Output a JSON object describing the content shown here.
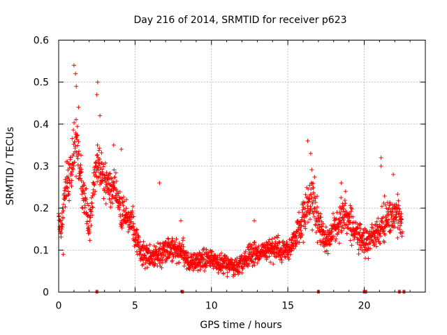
{
  "chart_data": {
    "type": "scatter",
    "title": "Day 216 of 2014, SRMTID for receiver p623",
    "xlabel": "GPS time / hours",
    "ylabel": "SRMTID / TECUs",
    "xlim": [
      0,
      24
    ],
    "ylim": [
      0,
      0.6
    ],
    "x_ticks": [
      "0",
      "5",
      "10",
      "15",
      "20"
    ],
    "y_ticks": [
      "0",
      "0.1",
      "0.2",
      "0.3",
      "0.4",
      "0.5",
      "0.6"
    ],
    "grid": true,
    "marker": "+",
    "colors": {
      "series": "#ff0000",
      "grid": "#a0a0a0",
      "axis": "#000000"
    },
    "series": [
      {
        "name": "SRMTID",
        "profile": {
          "x": [
            0.0,
            0.2,
            0.4,
            0.6,
            0.8,
            1.0,
            1.2,
            1.4,
            1.6,
            1.8,
            2.0,
            2.2,
            2.4,
            2.6,
            2.8,
            3.0,
            3.2,
            3.4,
            3.6,
            3.8,
            4.0,
            4.2,
            4.4,
            4.6,
            4.8,
            5.0,
            5.3,
            5.6,
            6.0,
            6.5,
            7.0,
            7.5,
            8.0,
            8.5,
            9.0,
            9.5,
            10.0,
            10.5,
            11.0,
            11.5,
            12.0,
            12.5,
            13.0,
            13.5,
            14.0,
            14.5,
            15.0,
            15.3,
            15.6,
            16.0,
            16.3,
            16.6,
            17.0,
            17.3,
            17.6,
            18.0,
            18.3,
            18.6,
            19.0,
            19.3,
            19.6,
            20.0,
            20.3,
            20.6,
            21.0,
            21.3,
            21.6,
            22.0,
            22.3,
            22.5
          ],
          "y": [
            0.17,
            0.16,
            0.24,
            0.27,
            0.3,
            0.36,
            0.35,
            0.3,
            0.24,
            0.2,
            0.15,
            0.22,
            0.28,
            0.32,
            0.28,
            0.27,
            0.26,
            0.24,
            0.25,
            0.24,
            0.21,
            0.19,
            0.18,
            0.17,
            0.17,
            0.13,
            0.1,
            0.09,
            0.08,
            0.09,
            0.1,
            0.1,
            0.1,
            0.07,
            0.07,
            0.08,
            0.08,
            0.07,
            0.07,
            0.06,
            0.07,
            0.09,
            0.09,
            0.1,
            0.1,
            0.1,
            0.1,
            0.12,
            0.14,
            0.17,
            0.2,
            0.24,
            0.16,
            0.13,
            0.12,
            0.15,
            0.16,
            0.18,
            0.18,
            0.15,
            0.13,
            0.12,
            0.12,
            0.13,
            0.14,
            0.17,
            0.17,
            0.19,
            0.18,
            0.15
          ],
          "spread": [
            0.03,
            0.03,
            0.04,
            0.05,
            0.05,
            0.06,
            0.06,
            0.05,
            0.05,
            0.05,
            0.03,
            0.04,
            0.05,
            0.05,
            0.05,
            0.05,
            0.04,
            0.04,
            0.04,
            0.04,
            0.04,
            0.04,
            0.03,
            0.03,
            0.03,
            0.03,
            0.025,
            0.025,
            0.025,
            0.03,
            0.025,
            0.025,
            0.025,
            0.02,
            0.02,
            0.02,
            0.02,
            0.02,
            0.02,
            0.02,
            0.02,
            0.02,
            0.02,
            0.02,
            0.025,
            0.025,
            0.025,
            0.03,
            0.03,
            0.04,
            0.05,
            0.06,
            0.04,
            0.03,
            0.03,
            0.03,
            0.03,
            0.04,
            0.04,
            0.03,
            0.03,
            0.03,
            0.03,
            0.03,
            0.03,
            0.04,
            0.04,
            0.04,
            0.04,
            0.03
          ]
        },
        "peaks": [
          {
            "x": 1.0,
            "y": 0.54
          },
          {
            "x": 1.1,
            "y": 0.52
          },
          {
            "x": 1.15,
            "y": 0.49
          },
          {
            "x": 2.55,
            "y": 0.5
          },
          {
            "x": 2.5,
            "y": 0.47
          },
          {
            "x": 1.3,
            "y": 0.44
          },
          {
            "x": 2.7,
            "y": 0.42
          },
          {
            "x": 4.1,
            "y": 0.34
          },
          {
            "x": 6.6,
            "y": 0.26
          },
          {
            "x": 8.0,
            "y": 0.17
          },
          {
            "x": 12.8,
            "y": 0.17
          },
          {
            "x": 16.3,
            "y": 0.36
          },
          {
            "x": 16.5,
            "y": 0.33
          },
          {
            "x": 18.5,
            "y": 0.26
          },
          {
            "x": 21.1,
            "y": 0.32
          },
          {
            "x": 21.9,
            "y": 0.28
          },
          {
            "x": 21.1,
            "y": 0.3
          },
          {
            "x": 0.3,
            "y": 0.09
          },
          {
            "x": 3.6,
            "y": 0.35
          }
        ],
        "samples": 1900
      }
    ],
    "axis_markers": {
      "x": [
        2.5,
        8.1,
        17.0,
        20.0,
        20.1,
        22.3,
        22.6
      ],
      "y": 0
    }
  }
}
